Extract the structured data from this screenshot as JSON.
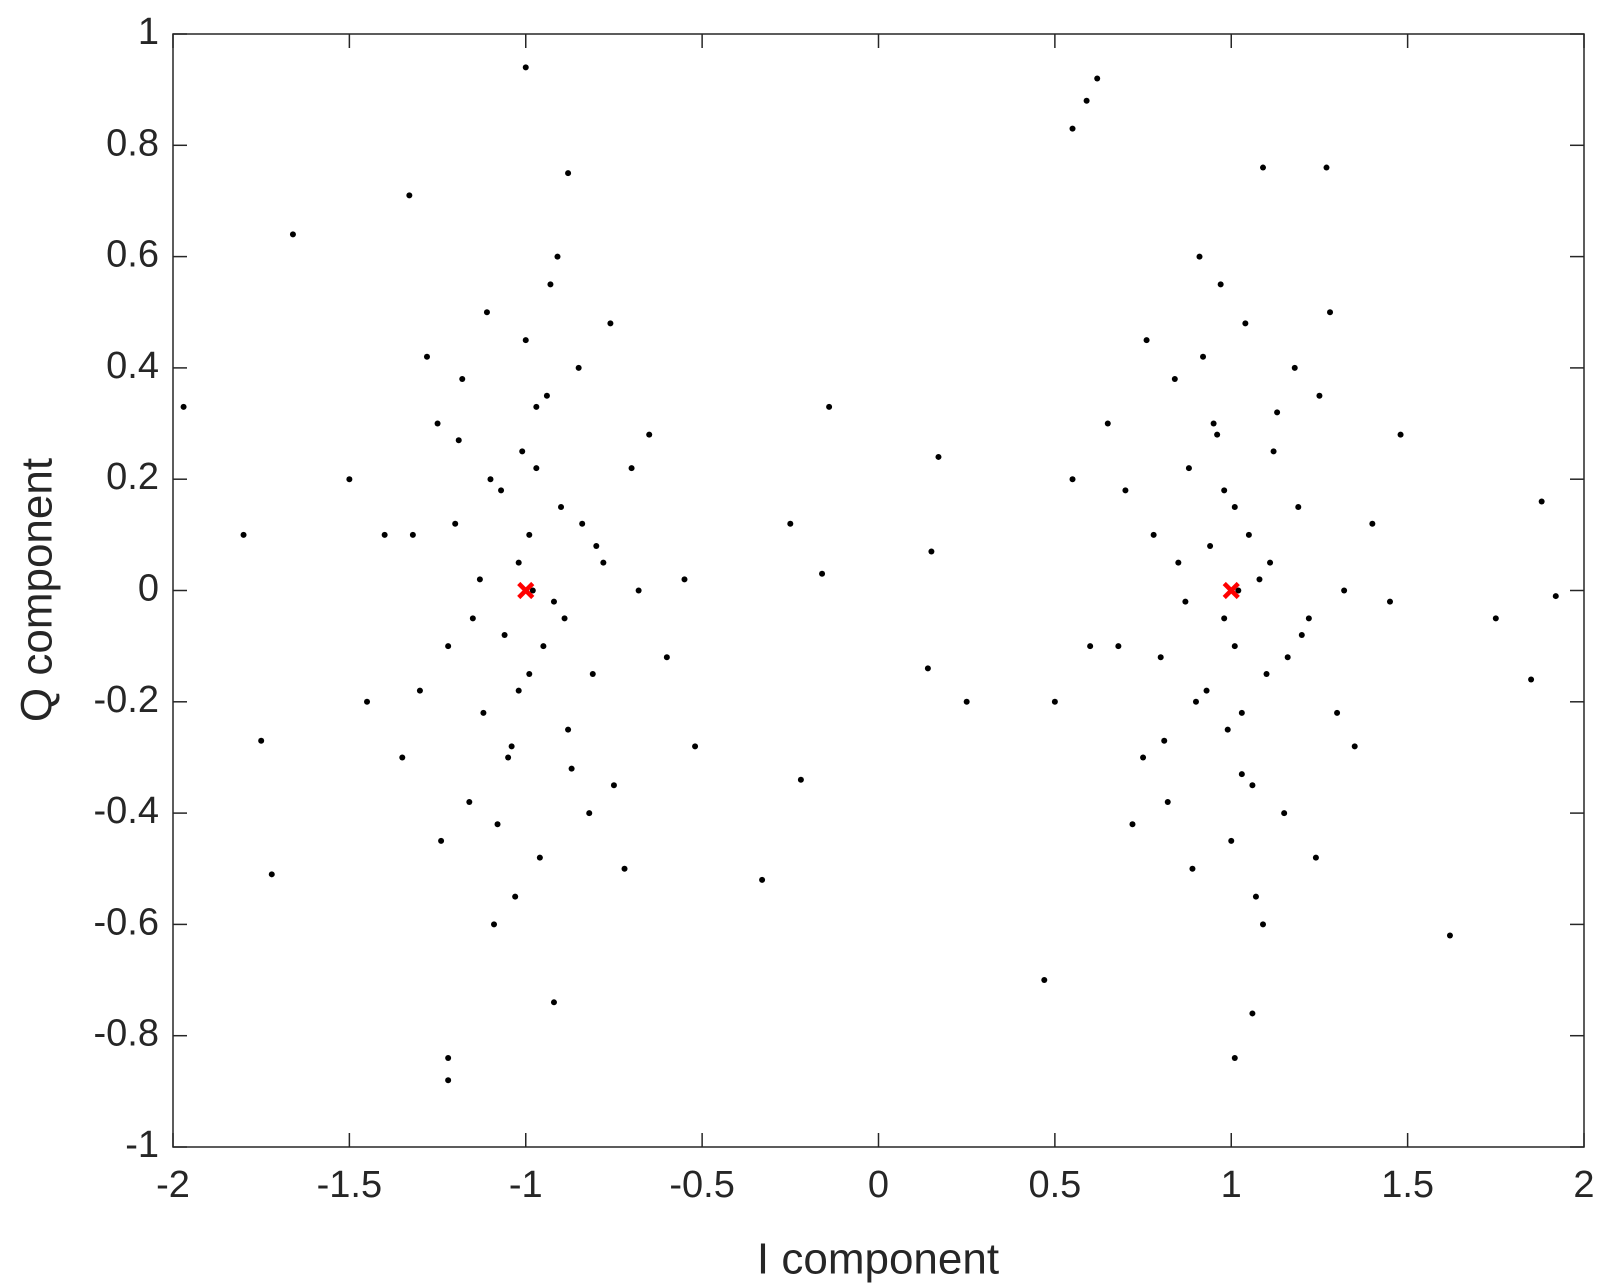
{
  "chart_data": {
    "type": "scatter",
    "xlabel": "I component",
    "ylabel": "Q component",
    "xlim": [
      -2,
      2
    ],
    "xticks": [
      -2,
      -1.5,
      -1,
      -0.5,
      0,
      0.5,
      1,
      1.5,
      2
    ],
    "ylim": [
      -1,
      1
    ],
    "yticks": [
      -1,
      -0.8,
      -0.6,
      -0.4,
      -0.2,
      0,
      0.2,
      0.4,
      0.6,
      0.8,
      1
    ],
    "series": [
      {
        "color": "#000000",
        "marker": "dot",
        "x": [
          -1.02,
          -0.95,
          -1.1,
          -0.88,
          -1.2,
          -0.8,
          -1.05,
          -0.97,
          -1.15,
          -0.9,
          -1.3,
          -0.7,
          -1.0,
          -1.08,
          -0.92,
          -1.25,
          -0.75,
          -0.85,
          -1.12,
          -0.98,
          -1.4,
          -0.6,
          -1.03,
          -0.93,
          -1.18,
          -0.82,
          -1.07,
          -0.99,
          -1.35,
          -0.65,
          -1.01,
          -0.96,
          -1.22,
          -0.78,
          -1.11,
          -0.89,
          -1.45,
          -0.55,
          -1.04,
          -0.94,
          -1.16,
          -0.84,
          -1.28,
          -0.72,
          -1.06,
          -0.91,
          -1.5,
          -0.52,
          -0.99,
          -1.09,
          -1.13,
          -0.87,
          -1.24,
          -0.76,
          -1.32,
          -0.68,
          -1.02,
          -0.97,
          -1.19,
          -0.81,
          -1.0,
          -1.97,
          -1.8,
          -1.75,
          -1.72,
          -1.22,
          -1.22,
          -0.14,
          -0.16,
          -0.22,
          -0.25,
          -0.33,
          -1.66,
          -0.88,
          -1.33,
          -0.92,
          0.98,
          1.05,
          0.9,
          1.12,
          0.8,
          1.2,
          0.95,
          1.03,
          0.85,
          1.1,
          0.7,
          1.3,
          1.0,
          0.92,
          1.08,
          0.75,
          1.25,
          1.15,
          0.88,
          1.02,
          0.6,
          1.4,
          0.97,
          1.07,
          0.82,
          1.18,
          0.93,
          1.01,
          0.65,
          1.35,
          0.99,
          1.04,
          0.78,
          1.22,
          0.89,
          1.11,
          0.55,
          1.45,
          0.96,
          1.06,
          0.84,
          1.16,
          0.72,
          1.28,
          0.94,
          1.09,
          0.5,
          1.48,
          1.01,
          0.91,
          0.87,
          1.13,
          0.76,
          1.24,
          0.68,
          1.32,
          0.98,
          1.03,
          0.81,
          1.19,
          0.62,
          0.59,
          0.55,
          1.92,
          1.88,
          1.85,
          0.14,
          0.15,
          0.17,
          0.25,
          0.47,
          1.06,
          1.01,
          1.27,
          1.09,
          1.62,
          1.75
        ],
        "values": [
          0.05,
          -0.1,
          0.2,
          -0.25,
          0.12,
          0.08,
          -0.3,
          0.33,
          -0.05,
          0.15,
          -0.18,
          0.22,
          0.45,
          -0.42,
          -0.02,
          0.3,
          -0.35,
          0.4,
          -0.22,
          0.0,
          0.1,
          -0.12,
          -0.55,
          0.55,
          0.38,
          -0.4,
          0.18,
          -0.15,
          -0.3,
          0.28,
          0.25,
          -0.48,
          -0.1,
          0.05,
          0.5,
          -0.05,
          -0.2,
          0.02,
          -0.28,
          0.35,
          -0.38,
          0.12,
          0.42,
          -0.5,
          -0.08,
          0.6,
          0.2,
          -0.28,
          0.1,
          -0.6,
          0.02,
          -0.32,
          -0.45,
          0.48,
          0.1,
          0.0,
          -0.18,
          0.22,
          0.27,
          -0.15,
          0.94,
          0.33,
          0.1,
          -0.27,
          -0.51,
          -0.88,
          -0.84,
          0.33,
          0.03,
          -0.34,
          0.12,
          -0.52,
          0.64,
          0.75,
          0.71,
          -0.74,
          -0.05,
          0.1,
          -0.2,
          0.25,
          -0.12,
          -0.08,
          0.3,
          -0.33,
          0.05,
          -0.15,
          0.18,
          -0.22,
          -0.45,
          0.42,
          0.02,
          -0.3,
          0.35,
          -0.4,
          0.22,
          0.0,
          -0.1,
          0.12,
          0.55,
          -0.55,
          -0.38,
          0.4,
          -0.18,
          0.15,
          0.3,
          -0.28,
          -0.25,
          0.48,
          0.1,
          -0.05,
          -0.5,
          0.05,
          0.2,
          -0.02,
          0.28,
          -0.35,
          0.38,
          -0.12,
          -0.42,
          0.5,
          0.08,
          -0.6,
          -0.2,
          0.28,
          -0.1,
          0.6,
          -0.02,
          0.32,
          0.45,
          -0.48,
          -0.1,
          0.0,
          0.18,
          -0.22,
          -0.27,
          0.15,
          0.92,
          0.88,
          0.83,
          -0.01,
          0.16,
          -0.16,
          -0.14,
          0.07,
          0.24,
          -0.2,
          -0.7,
          -0.76,
          -0.84,
          0.76,
          0.76,
          -0.62,
          -0.05
        ]
      },
      {
        "color": "#ff0000",
        "marker": "x",
        "x": [
          -1,
          1
        ],
        "values": [
          0,
          0
        ]
      }
    ]
  }
}
